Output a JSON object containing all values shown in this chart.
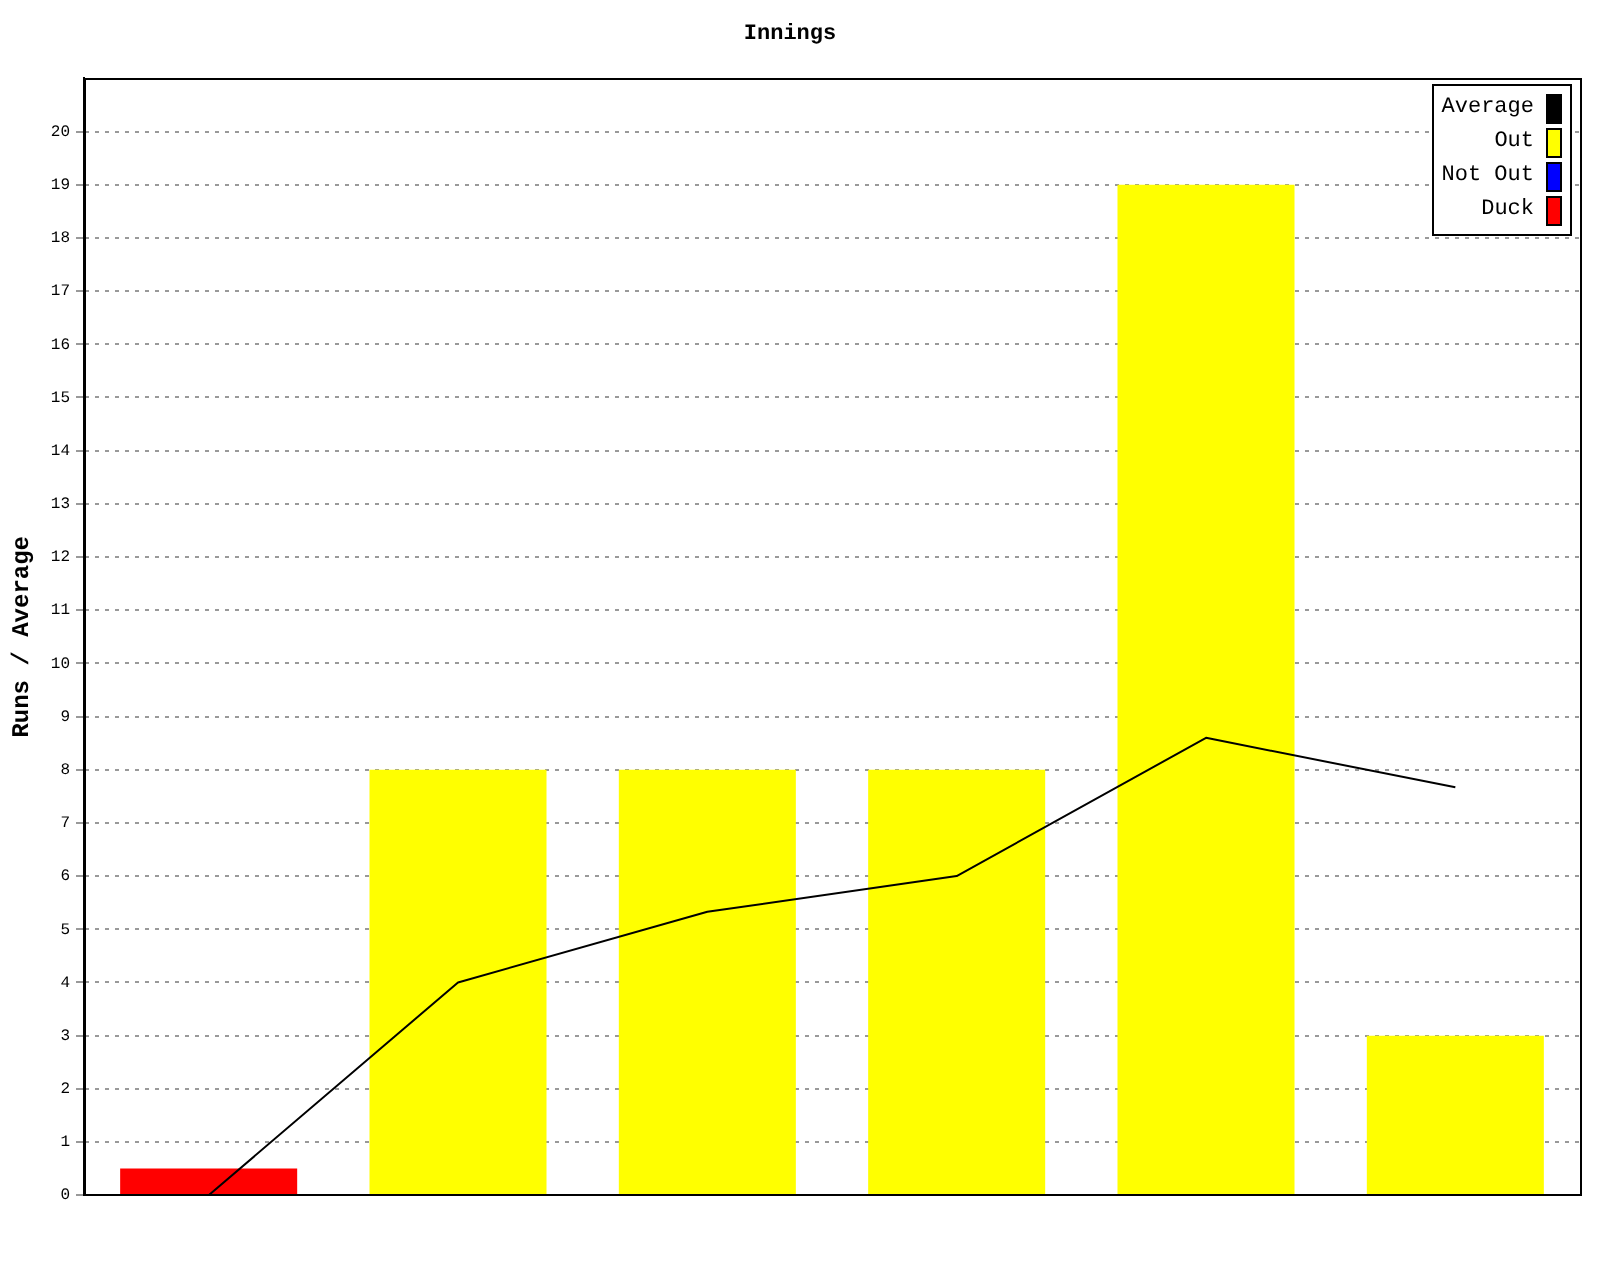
{
  "chart_data": {
    "type": "bar",
    "title": "Innings",
    "ylabel": "Runs / Average",
    "categories": [
      null,
      null,
      null,
      null,
      null,
      null
    ],
    "series": [
      {
        "name": "Average",
        "type": "line",
        "color": "#000000",
        "values": [
          0,
          4,
          5.33,
          6,
          8.6,
          7.67
        ]
      },
      {
        "name": "Out",
        "color": "#ffff00",
        "values": [
          null,
          8,
          8,
          8,
          19,
          3
        ]
      },
      {
        "name": "Not Out",
        "color": "#0000ff",
        "values": [
          null,
          null,
          null,
          null,
          null,
          null
        ]
      },
      {
        "name": "Duck",
        "color": "#ff0000",
        "values": [
          0.5,
          null,
          null,
          null,
          null,
          null
        ]
      }
    ],
    "stacked": true,
    "ylim": [
      0,
      21
    ],
    "yticks": [
      0,
      1,
      2,
      3,
      4,
      5,
      6,
      7,
      8,
      9,
      10,
      11,
      12,
      13,
      14,
      15,
      16,
      17,
      18,
      19,
      20
    ],
    "grid": "y",
    "line_style": "solid",
    "marker": "none",
    "legend": "top right"
  }
}
